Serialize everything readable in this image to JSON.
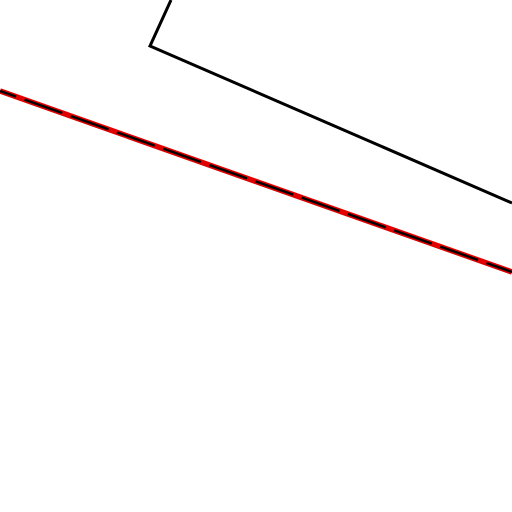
{
  "map": {
    "background_color": "#ffffff",
    "features": [
      {
        "kind": "parcel-boundary",
        "style": "solid",
        "stroke_color": "#000000"
      },
      {
        "kind": "railway-line",
        "style": "red line with black dashes",
        "stroke_color": "#e00000",
        "dash_color": "#000000"
      }
    ]
  }
}
